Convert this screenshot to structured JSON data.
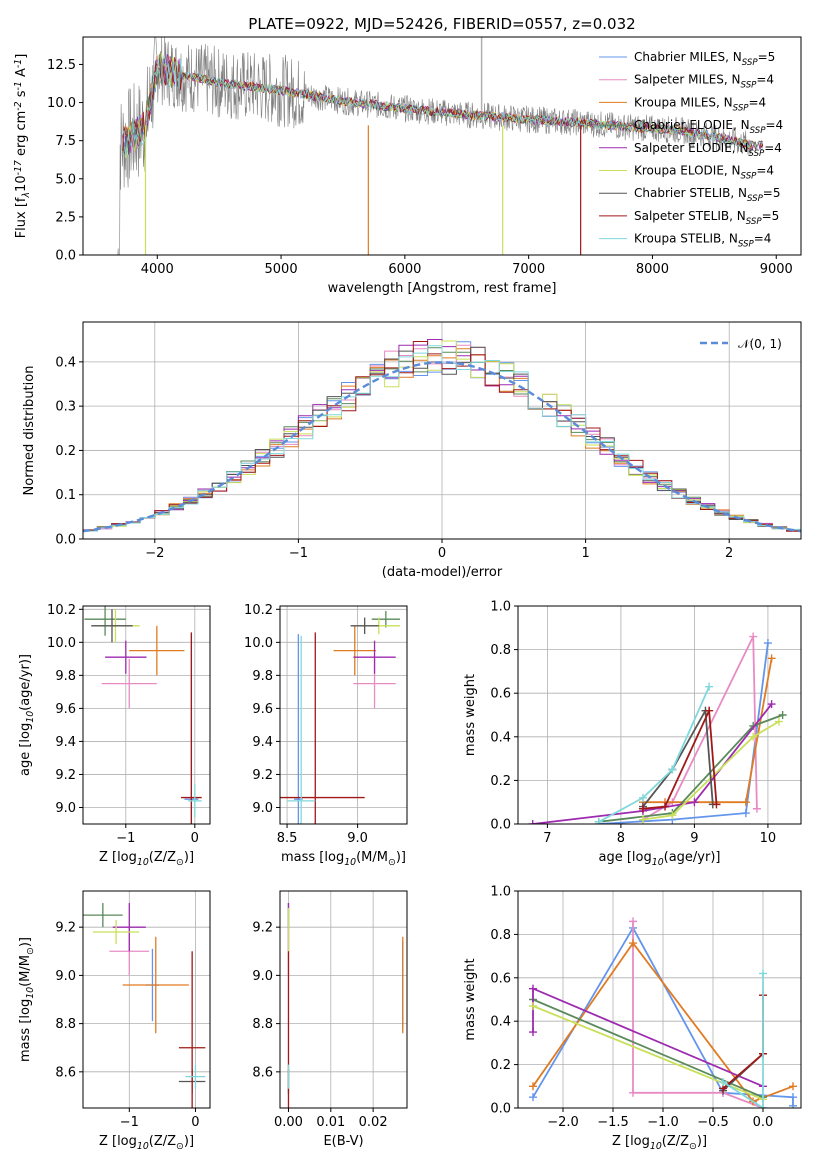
{
  "title": "PLATE=0922, MJD=52426, FIBERID=0557, z=0.032",
  "colors": [
    "#6495ED",
    "#E88BC4",
    "#E07B22",
    "#5A8A5A",
    "#9D2AB0",
    "#C8E05A",
    "#555555",
    "#A01818",
    "#80D8DC"
  ],
  "chart_data": [
    {
      "id": "spectrum",
      "type": "line",
      "xlabel": "wavelength [Angstrom, rest frame]",
      "ylabel": "Flux [f$_{\\lambda}$10$^{-17}$ erg cm$^{-2}$ s$^{-1}$ A$^{-1}$]",
      "xlim": [
        3400,
        9200
      ],
      "ylim": [
        0,
        14.3
      ],
      "xticks": [
        4000,
        5000,
        6000,
        7000,
        8000,
        9000
      ],
      "yticks": [
        0.0,
        2.5,
        5.0,
        7.5,
        10.0,
        12.5
      ],
      "data_color": "#808080",
      "continuum": {
        "x": [
          3700,
          3900,
          4000,
          4200,
          4500,
          5000,
          5500,
          6000,
          6500,
          7000,
          7400,
          7800,
          8200,
          8600,
          8800
        ],
        "y": [
          7.2,
          8.4,
          12.3,
          11.8,
          11.3,
          10.8,
          10.1,
          9.6,
          9.2,
          8.9,
          8.7,
          8.4,
          8.2,
          7.6,
          7.2
        ]
      },
      "legend": [
        "Chabrier MILES, N$_{SSP}$=5",
        "Salpeter MILES, N$_{SSP}$=4",
        "Kroupa MILES, N$_{SSP}$=4",
        "Chabrier ELODIE, N$_{SSP}$=4",
        "Salpeter ELODIE, N$_{SSP}$=4",
        "Kroupa ELODIE, N$_{SSP}$=4",
        "Chabrier STELIB, N$_{SSP}$=5",
        "Salpeter STELIB, N$_{SSP}$=5",
        "Kroupa STELIB, N$_{SSP}$=4"
      ]
    },
    {
      "id": "residuals",
      "type": "step",
      "xlabel": "(data-model)/error",
      "ylabel": "Normed distribution",
      "xlim": [
        -2.5,
        2.5
      ],
      "ylim": [
        0,
        0.49
      ],
      "xticks": [
        -2,
        -1,
        0,
        1,
        2
      ],
      "yticks": [
        0.0,
        0.1,
        0.2,
        0.3,
        0.4
      ],
      "legend": "$\\mathcal{N}(0, 1)$",
      "gaussian_sigma": 1.0
    },
    {
      "id": "age_vs_Z",
      "type": "errorbar",
      "xlabel": "Z [log$_{10}$(Z/Z$_\\odot$)]",
      "ylabel": "age  [log$_{10}$(age/yr)]",
      "xlim": [
        -1.62,
        0.22
      ],
      "ylim": [
        8.9,
        10.22
      ],
      "xticks": [
        -1,
        0
      ],
      "yticks": [
        9.0,
        9.2,
        9.4,
        9.6,
        9.8,
        10.0,
        10.2
      ],
      "points": [
        {
          "color": 0,
          "x": -0.05,
          "y": 9.05,
          "xerr": 0.1,
          "yerr": 1.0
        },
        {
          "color": 1,
          "x": -0.95,
          "y": 9.75,
          "xerr": 0.4,
          "yerr": 0.15
        },
        {
          "color": 2,
          "x": -0.55,
          "y": 9.95,
          "xerr": 0.4,
          "yerr": 0.15
        },
        {
          "color": 3,
          "x": -1.3,
          "y": 10.14,
          "xerr": 0.3,
          "yerr": 0.1
        },
        {
          "color": 4,
          "x": -1.0,
          "y": 9.91,
          "xerr": 0.3,
          "yerr": 0.1
        },
        {
          "color": 5,
          "x": -1.15,
          "y": 10.1,
          "xerr": 0.35,
          "yerr": 0.1
        },
        {
          "color": 6,
          "x": -1.2,
          "y": 10.1,
          "xerr": 0.3,
          "yerr": 0.1
        },
        {
          "color": 7,
          "x": -0.05,
          "y": 9.06,
          "xerr": 0.15,
          "yerr": 1.0
        },
        {
          "color": 8,
          "x": 0.0,
          "y": 9.04,
          "xerr": 0.1,
          "yerr": 0.1
        }
      ]
    },
    {
      "id": "age_vs_mass",
      "type": "errorbar",
      "xlabel": "mass [log$_{10}$(M/M$_\\odot$)]",
      "ylabel": "",
      "xlim": [
        8.45,
        9.35
      ],
      "ylim": [
        8.9,
        10.22
      ],
      "xticks": [
        8.5,
        9.0
      ],
      "yticks": [
        9.0,
        9.2,
        9.4,
        9.6,
        9.8,
        10.0,
        10.2
      ],
      "points": [
        {
          "color": 0,
          "x": 8.58,
          "y": 9.05,
          "xerr": 0.03,
          "yerr": 1.0
        },
        {
          "color": 1,
          "x": 9.12,
          "y": 9.75,
          "xerr": 0.15,
          "yerr": 0.15
        },
        {
          "color": 2,
          "x": 8.98,
          "y": 9.95,
          "xerr": 0.15,
          "yerr": 0.15
        },
        {
          "color": 3,
          "x": 9.2,
          "y": 10.14,
          "xerr": 0.1,
          "yerr": 0.05
        },
        {
          "color": 4,
          "x": 9.12,
          "y": 9.91,
          "xerr": 0.15,
          "yerr": 0.1
        },
        {
          "color": 5,
          "x": 9.15,
          "y": 10.1,
          "xerr": 0.15,
          "yerr": 0.05
        },
        {
          "color": 6,
          "x": 9.05,
          "y": 10.1,
          "xerr": 0.1,
          "yerr": 0.05
        },
        {
          "color": 7,
          "x": 8.7,
          "y": 9.06,
          "xerr": 0.35,
          "yerr": 1.0
        },
        {
          "color": 8,
          "x": 8.6,
          "y": 9.04,
          "xerr": 0.1,
          "yerr": 1.0
        }
      ]
    },
    {
      "id": "weight_vs_age",
      "type": "line",
      "xlabel": "age  [log$_{10}$(age/yr)]",
      "ylabel": "mass weight",
      "xlim": [
        6.6,
        10.45
      ],
      "ylim": [
        0,
        1.0
      ],
      "xticks": [
        7,
        8,
        9,
        10
      ],
      "yticks": [
        0.0,
        0.2,
        0.4,
        0.6,
        0.8,
        1.0
      ],
      "series": [
        {
          "color": 0,
          "x": [
            7.7,
            8.7,
            9.7,
            10.0
          ],
          "y": [
            0.0,
            0.02,
            0.05,
            0.83
          ]
        },
        {
          "color": 1,
          "x": [
            8.3,
            8.7,
            9.8,
            9.85
          ],
          "y": [
            0.02,
            0.1,
            0.86,
            0.07
          ]
        },
        {
          "color": 2,
          "x": [
            8.3,
            8.6,
            9.7,
            10.05
          ],
          "y": [
            0.1,
            0.1,
            0.1,
            0.76
          ]
        },
        {
          "color": 3,
          "x": [
            7.7,
            8.7,
            9.8,
            10.2
          ],
          "y": [
            0.01,
            0.05,
            0.45,
            0.5
          ]
        },
        {
          "color": 4,
          "x": [
            6.8,
            8.3,
            9.0,
            10.05
          ],
          "y": [
            0.0,
            0.06,
            0.1,
            0.55
          ]
        },
        {
          "color": 5,
          "x": [
            8.3,
            8.7,
            9.8,
            10.15
          ],
          "y": [
            0.02,
            0.04,
            0.4,
            0.47
          ]
        },
        {
          "color": 6,
          "x": [
            8.3,
            8.7,
            9.15,
            9.25
          ],
          "y": [
            0.08,
            0.25,
            0.52,
            0.09
          ]
        },
        {
          "color": 7,
          "x": [
            8.3,
            8.6,
            9.2,
            9.3
          ],
          "y": [
            0.07,
            0.08,
            0.52,
            0.09
          ]
        },
        {
          "color": 8,
          "x": [
            7.7,
            8.3,
            8.7,
            9.2
          ],
          "y": [
            0.01,
            0.12,
            0.25,
            0.63
          ]
        }
      ]
    },
    {
      "id": "mass_vs_Z",
      "type": "errorbar",
      "xlabel": "Z [log$_{10}$(Z/Z$_\\odot$)]",
      "ylabel": "mass [log$_{10}$(M/M$_\\odot$)]",
      "xlim": [
        -1.7,
        0.22
      ],
      "ylim": [
        8.45,
        9.35
      ],
      "xticks": [
        -1,
        0
      ],
      "yticks": [
        8.6,
        8.8,
        9.0,
        9.2
      ],
      "points": [
        {
          "color": 0,
          "x": -0.65,
          "y": 8.96,
          "xerr": 0.1,
          "yerr": 0.15
        },
        {
          "color": 1,
          "x": -1.0,
          "y": 9.1,
          "xerr": 0.3,
          "yerr": 0.1
        },
        {
          "color": 2,
          "x": -0.6,
          "y": 8.96,
          "xerr": 0.5,
          "yerr": 0.2
        },
        {
          "color": 3,
          "x": -1.4,
          "y": 9.25,
          "xerr": 0.3,
          "yerr": 0.05
        },
        {
          "color": 4,
          "x": -1.0,
          "y": 9.2,
          "xerr": 0.25,
          "yerr": 0.1
        },
        {
          "color": 5,
          "x": -1.2,
          "y": 9.18,
          "xerr": 0.35,
          "yerr": 0.05
        },
        {
          "color": 6,
          "x": -0.05,
          "y": 8.56,
          "xerr": 0.2,
          "yerr": 0.05
        },
        {
          "color": 7,
          "x": -0.05,
          "y": 8.7,
          "xerr": 0.2,
          "yerr": 0.4
        },
        {
          "color": 8,
          "x": 0.0,
          "y": 8.58,
          "xerr": 0.15,
          "yerr": 0.05
        }
      ]
    },
    {
      "id": "mass_vs_EBV",
      "type": "errorbar",
      "xlabel": "E(B-V)",
      "ylabel": "",
      "xlim": [
        -0.002,
        0.028
      ],
      "ylim": [
        8.45,
        9.35
      ],
      "xticks": [
        0.0,
        0.01,
        0.02
      ],
      "yticks": [
        8.6,
        8.8,
        9.0,
        9.2
      ],
      "points": [
        {
          "color": 0,
          "x": 0.027,
          "y": 8.96,
          "xerr": 0.0,
          "yerr": 0.18
        },
        {
          "color": 1,
          "x": 0.0,
          "y": 9.1,
          "xerr": 0.0,
          "yerr": 0.1
        },
        {
          "color": 2,
          "x": 0.027,
          "y": 8.96,
          "xerr": 0.0,
          "yerr": 0.2
        },
        {
          "color": 3,
          "x": 0.0,
          "y": 9.25,
          "xerr": 0.0,
          "yerr": 0.05
        },
        {
          "color": 4,
          "x": 0.0,
          "y": 9.2,
          "xerr": 0.0,
          "yerr": 0.1
        },
        {
          "color": 5,
          "x": 0.0,
          "y": 9.18,
          "xerr": 0.0,
          "yerr": 0.1
        },
        {
          "color": 6,
          "x": 0.0,
          "y": 8.56,
          "xerr": 0.0,
          "yerr": 0.05
        },
        {
          "color": 7,
          "x": 0.0,
          "y": 8.7,
          "xerr": 0.0,
          "yerr": 0.4
        },
        {
          "color": 8,
          "x": 0.0,
          "y": 8.58,
          "xerr": 0.0,
          "yerr": 0.05
        }
      ]
    },
    {
      "id": "weight_vs_Z",
      "type": "line",
      "xlabel": "Z [log$_{10}$(Z/Z$_\\odot$)]",
      "ylabel": "mass weight",
      "xlim": [
        -2.45,
        0.38
      ],
      "ylim": [
        0,
        1.0
      ],
      "xticks": [
        -2.0,
        -1.5,
        -1.0,
        -0.5,
        0.0
      ],
      "yticks": [
        0.0,
        0.2,
        0.4,
        0.6,
        0.8,
        1.0
      ],
      "series": [
        {
          "color": 0,
          "x": [
            -2.3,
            -1.3,
            -0.4,
            0.3,
            0.3
          ],
          "y": [
            0.05,
            0.83,
            0.07,
            0.05,
            0.01
          ]
        },
        {
          "color": 1,
          "x": [
            -1.3,
            -1.3,
            -0.4,
            0.0
          ],
          "y": [
            0.86,
            0.07,
            0.07,
            0.0
          ]
        },
        {
          "color": 2,
          "x": [
            -2.3,
            -1.3,
            -0.1,
            0.3
          ],
          "y": [
            0.1,
            0.76,
            0.03,
            0.1
          ]
        },
        {
          "color": 3,
          "x": [
            -2.3,
            0.0
          ],
          "y": [
            0.5,
            0.05
          ]
        },
        {
          "color": 4,
          "x": [
            -2.3,
            -2.3,
            0.0
          ],
          "y": [
            0.35,
            0.55,
            0.1
          ]
        },
        {
          "color": 5,
          "x": [
            -2.3,
            0.0
          ],
          "y": [
            0.47,
            0.04
          ]
        },
        {
          "color": 6,
          "x": [
            -0.4,
            0.0
          ],
          "y": [
            0.08,
            0.25
          ]
        },
        {
          "color": 7,
          "x": [
            -0.4,
            0.0,
            0.0
          ],
          "y": [
            0.09,
            0.25,
            0.52
          ]
        },
        {
          "color": 8,
          "x": [
            -0.4,
            0.0,
            0.0
          ],
          "y": [
            0.12,
            0.0,
            0.62
          ]
        }
      ]
    }
  ]
}
